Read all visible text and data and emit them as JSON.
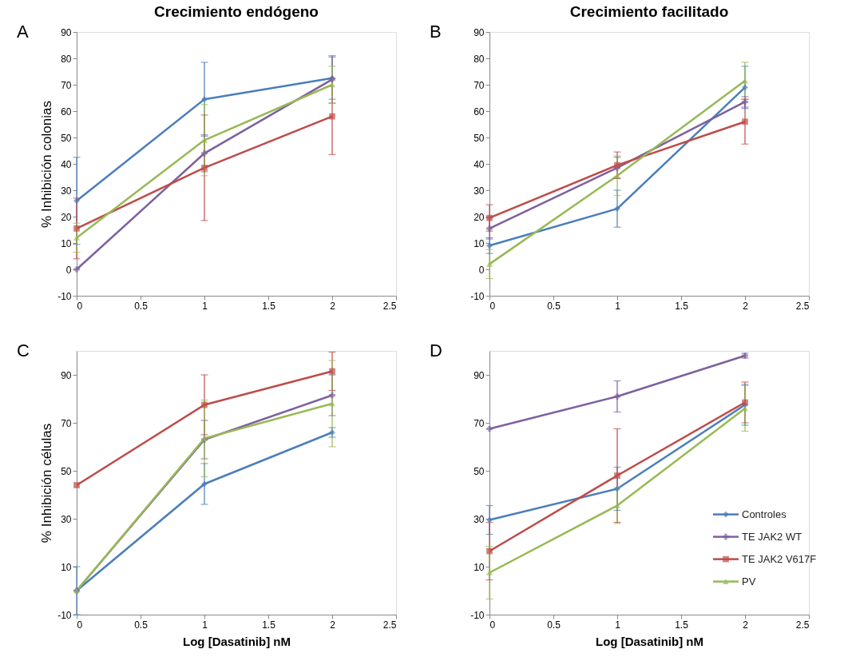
{
  "chart_data": [
    {
      "type": "line",
      "title": "Crecimiento endógeno",
      "ylabel": "% Inhibición  colonias",
      "annotations": [
        "A"
      ],
      "x": [
        0,
        1,
        2
      ],
      "xlim": [
        0,
        2.5
      ],
      "xticks": [
        0,
        0.5,
        1,
        1.5,
        2,
        2.5
      ],
      "ylim": [
        -10,
        90
      ],
      "yticks": [
        -10,
        0,
        10,
        20,
        30,
        40,
        50,
        60,
        70,
        80,
        90
      ],
      "grid": false,
      "legend": false,
      "series": [
        {
          "color": "#4a7ebb",
          "marker": "diamond",
          "values": [
            26,
            64.5,
            72.5
          ],
          "errors": [
            16.5,
            14,
            8
          ]
        },
        {
          "color": "#7d60a0",
          "marker": "cross",
          "values": [
            0,
            44,
            72
          ],
          "errors": [
            null,
            7,
            9
          ]
        },
        {
          "color": "#be4b48",
          "marker": "square",
          "values": [
            15.5,
            38.5,
            58
          ],
          "errors": [
            11.5,
            20,
            14.5
          ]
        },
        {
          "color": "#98b954",
          "marker": "triangle",
          "values": [
            12,
            49,
            70
          ],
          "errors": [
            5.5,
            13.5,
            7
          ]
        }
      ]
    },
    {
      "type": "line",
      "title": "Crecimiento facilitado",
      "annotations": [
        "B"
      ],
      "x": [
        0,
        1,
        2
      ],
      "xlim": [
        0,
        2.5
      ],
      "xticks": [
        0,
        0.5,
        1,
        1.5,
        2,
        2.5
      ],
      "ylim": [
        -10,
        90
      ],
      "yticks": [
        -10,
        0,
        10,
        20,
        30,
        40,
        50,
        60,
        70,
        80,
        90
      ],
      "grid": false,
      "legend": false,
      "series": [
        {
          "color": "#4a7ebb",
          "marker": "diamond",
          "values": [
            9,
            23,
            69
          ],
          "errors": [
            3,
            7,
            8
          ]
        },
        {
          "color": "#7d60a0",
          "marker": "cross",
          "values": [
            15.5,
            38.5,
            63.5
          ],
          "errors": [
            4,
            4,
            2
          ]
        },
        {
          "color": "#be4b48",
          "marker": "square",
          "values": [
            19.5,
            39.5,
            56
          ],
          "errors": [
            5,
            5,
            8.5
          ]
        },
        {
          "color": "#98b954",
          "marker": "triangle",
          "values": [
            2,
            35.5,
            71.5
          ],
          "errors": [
            5.5,
            7.5,
            7
          ]
        }
      ]
    },
    {
      "type": "line",
      "xlabel": "Log [Dasatinib]   nM",
      "ylabel": "% Inhibición  células",
      "annotations": [
        "C"
      ],
      "x": [
        0,
        1,
        2
      ],
      "xlim": [
        0,
        2.5
      ],
      "xticks": [
        0,
        0.5,
        1,
        1.5,
        2,
        2.5
      ],
      "ylim": [
        -10,
        100
      ],
      "yticks": [
        -10,
        10,
        30,
        50,
        70,
        90
      ],
      "grid": false,
      "legend": false,
      "series": [
        {
          "color": "#4a7ebb",
          "marker": "diamond",
          "values": [
            0,
            44.5,
            66
          ],
          "errors": [
            10,
            8.5,
            2
          ]
        },
        {
          "color": "#7d60a0",
          "marker": "cross",
          "values": [
            0,
            63,
            81.5
          ],
          "errors": [
            null,
            8,
            8.5
          ]
        },
        {
          "color": "#be4b48",
          "marker": "square",
          "values": [
            44,
            77.5,
            91.5
          ],
          "errors": [
            null,
            12.5,
            8
          ]
        },
        {
          "color": "#98b954",
          "marker": "triangle",
          "values": [
            0,
            63.5,
            78
          ],
          "errors": [
            null,
            16,
            18
          ]
        }
      ]
    },
    {
      "type": "line",
      "xlabel": "Log [Dasatinib]   nM",
      "annotations": [
        "D"
      ],
      "x": [
        0,
        1,
        2
      ],
      "xlim": [
        0,
        2.5
      ],
      "xticks": [
        0,
        0.5,
        1,
        1.5,
        2,
        2.5
      ],
      "ylim": [
        -10,
        100
      ],
      "yticks": [
        -10,
        10,
        30,
        50,
        70,
        90
      ],
      "grid": false,
      "legend": "bottom right",
      "series": [
        {
          "name": "Controles",
          "color": "#4a7ebb",
          "marker": "diamond",
          "values": [
            29.5,
            42.5,
            77.5
          ],
          "errors": [
            6,
            9,
            8.5
          ]
        },
        {
          "name": "TE JAK2 WT",
          "color": "#7d60a0",
          "marker": "cross",
          "values": [
            67.5,
            81,
            98
          ],
          "errors": [
            null,
            6.5,
            1
          ]
        },
        {
          "name": "TE JAK2 V617F",
          "color": "#be4b48",
          "marker": "square",
          "values": [
            16.5,
            48,
            78.5
          ],
          "errors": [
            12,
            19.5,
            8.5
          ]
        },
        {
          "name": "PV",
          "color": "#98b954",
          "marker": "triangle",
          "values": [
            7.5,
            35.5,
            76
          ],
          "errors": [
            11,
            7.5,
            9.5
          ]
        }
      ]
    }
  ]
}
